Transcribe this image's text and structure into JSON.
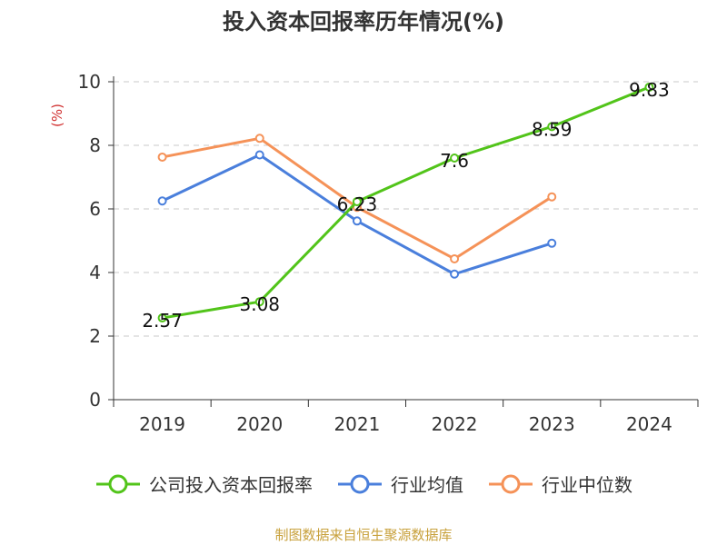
{
  "chart_data": {
    "type": "line",
    "title": "投入资本回报率历年情况(%)",
    "ylabel": "(%)",
    "categories": [
      "2019",
      "2020",
      "2021",
      "2022",
      "2023",
      "2024"
    ],
    "ylim": [
      0,
      10
    ],
    "yticks": [
      "0",
      "2",
      "4",
      "6",
      "8",
      "10"
    ],
    "grid": true,
    "legend_position": "bottom",
    "series": [
      {
        "name": "公司投入资本回报率",
        "color": "#52c41a",
        "values": [
          2.57,
          3.08,
          6.23,
          7.6,
          8.59,
          9.83
        ],
        "labels": [
          "2.57",
          "3.08",
          "6.23",
          "7.6",
          "8.59",
          "9.83"
        ]
      },
      {
        "name": "行业均值",
        "color": "#4a7fdc",
        "values": [
          6.25,
          7.7,
          5.62,
          3.95,
          4.92,
          null
        ]
      },
      {
        "name": "行业中位数",
        "color": "#f59258",
        "values": [
          7.63,
          8.22,
          6.05,
          4.43,
          6.38,
          null
        ]
      }
    ]
  },
  "footer": {
    "source": "制图数据来自恒生聚源数据库"
  }
}
